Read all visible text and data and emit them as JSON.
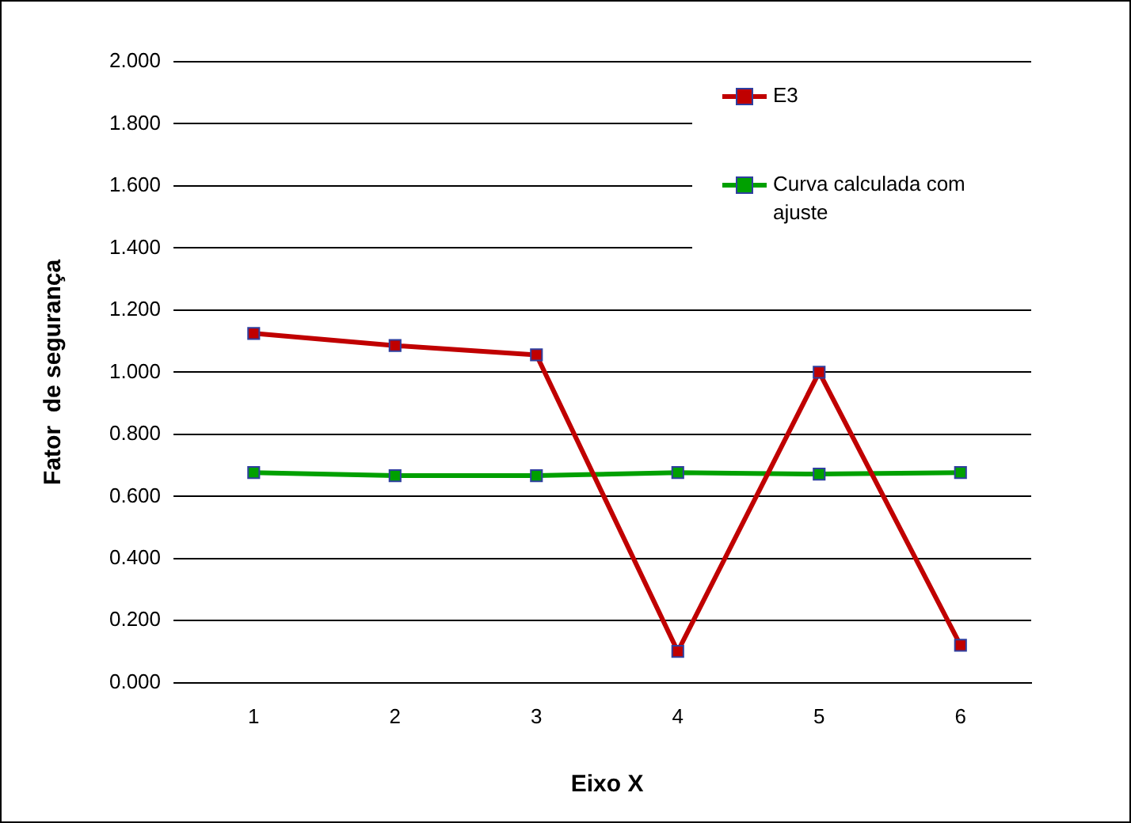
{
  "chart_data": {
    "type": "line",
    "xlabel": "Eixo X",
    "ylabel": "Fator  de segurança",
    "categories": [
      "1",
      "2",
      "3",
      "4",
      "5",
      "6"
    ],
    "series": [
      {
        "name": "E3",
        "color": "#c00000",
        "values": [
          1.125,
          1.086,
          1.056,
          0.101,
          1.0,
          0.121
        ]
      },
      {
        "name": "Curva calculada com ajuste",
        "color": "#00a000",
        "values": [
          0.677,
          0.667,
          0.667,
          0.677,
          0.672,
          0.677
        ]
      }
    ],
    "ylim": [
      0,
      2
    ],
    "yticks": [
      {
        "value": 0,
        "label": "0.000"
      },
      {
        "value": 0.2,
        "label": "0.200"
      },
      {
        "value": 0.4,
        "label": "0.400"
      },
      {
        "value": 0.6,
        "label": "0.600"
      },
      {
        "value": 0.8,
        "label": "0.800"
      },
      {
        "value": 1,
        "label": "1.000"
      },
      {
        "value": 1.2,
        "label": "1.200"
      },
      {
        "value": 1.4,
        "label": "1.400"
      },
      {
        "value": 1.6,
        "label": "1.600"
      },
      {
        "value": 1.8,
        "label": "1.800"
      },
      {
        "value": 2,
        "label": "2.000"
      }
    ],
    "grid": "y",
    "legend": "top right",
    "marker": "square",
    "line_style": "solid"
  }
}
